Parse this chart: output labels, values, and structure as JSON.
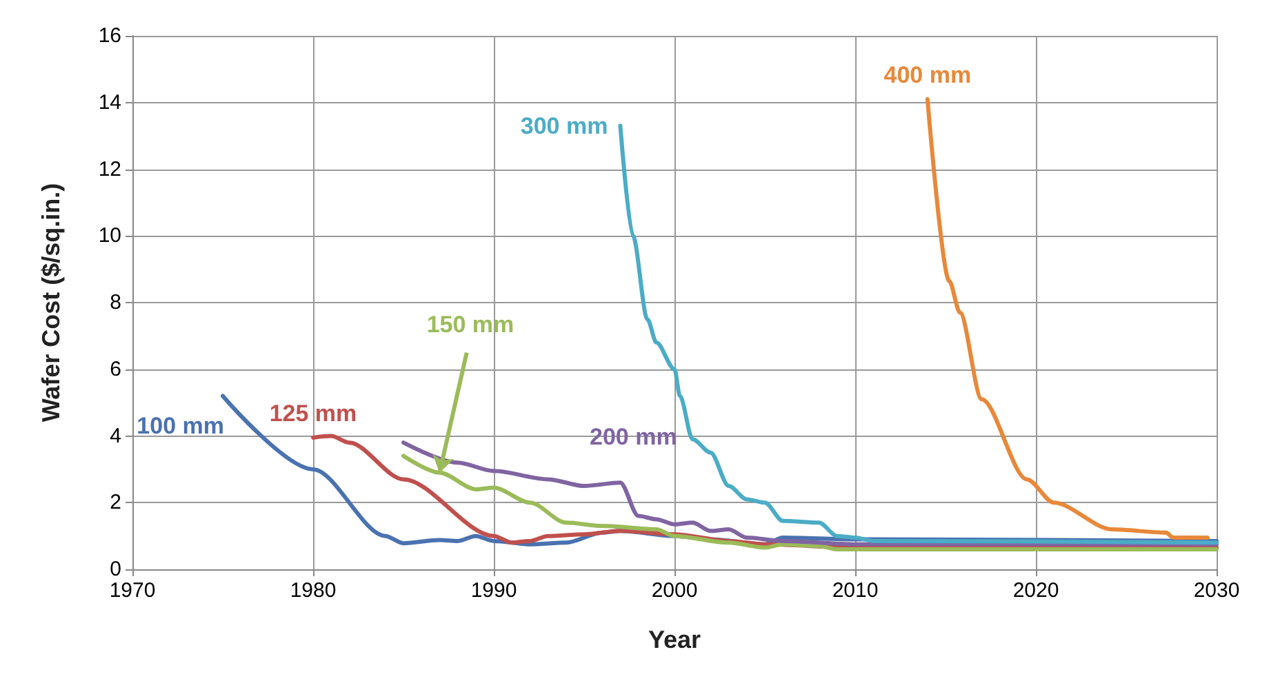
{
  "chart_data": {
    "type": "line",
    "xlabel": "Year",
    "ylabel": "Wafer Cost ($/sq.in.)",
    "xlim": [
      1970,
      2030
    ],
    "xticks": [
      1970,
      1980,
      1990,
      2000,
      2010,
      2020,
      2030
    ],
    "ylim": [
      0,
      16
    ],
    "yticks": [
      0,
      2,
      4,
      6,
      8,
      10,
      12,
      14,
      16
    ],
    "grid": true,
    "legend": false,
    "marker": "none",
    "line_style": "solid",
    "series": [
      {
        "name": "100 mm",
        "color": "#4a72b0",
        "x": [
          1975,
          1980,
          1984,
          1985,
          1987,
          1988,
          1989,
          1990,
          1992,
          1994,
          1996,
          1997,
          2000,
          2002,
          2005,
          2006,
          2010,
          2030
        ],
        "values": [
          5.2,
          3.0,
          1.0,
          0.78,
          0.88,
          0.85,
          1.0,
          0.85,
          0.75,
          0.8,
          1.1,
          1.15,
          1.0,
          0.9,
          0.75,
          0.95,
          0.9,
          0.85
        ]
      },
      {
        "name": "125 mm",
        "color": "#c0504d",
        "x": [
          1980,
          1981,
          1982,
          1985,
          1990,
          1991,
          1992,
          1993,
          1995,
          1997,
          2000,
          2003,
          2005,
          2010,
          2030
        ],
        "values": [
          3.95,
          4.0,
          3.8,
          2.7,
          1.0,
          0.8,
          0.85,
          1.0,
          1.05,
          1.15,
          1.05,
          0.85,
          0.75,
          0.65,
          0.65
        ]
      },
      {
        "name": "150 mm",
        "color": "#9bbb59",
        "x": [
          1985,
          1987,
          1989,
          1990,
          1992,
          1994,
          1996,
          1999,
          2000,
          2003,
          2005,
          2006,
          2008,
          2009,
          2030
        ],
        "values": [
          3.4,
          2.9,
          2.4,
          2.45,
          2.0,
          1.4,
          1.3,
          1.2,
          1.0,
          0.8,
          0.65,
          0.75,
          0.7,
          0.6,
          0.6
        ]
      },
      {
        "name": "200 mm",
        "color": "#8064a2",
        "x": [
          1985,
          1988,
          1990,
          1993,
          1995,
          1997,
          1998,
          1999,
          2000,
          2001,
          2002,
          2003,
          2004,
          2006,
          2010,
          2030
        ],
        "values": [
          3.8,
          3.2,
          2.95,
          2.7,
          2.5,
          2.6,
          1.6,
          1.5,
          1.35,
          1.4,
          1.15,
          1.2,
          0.95,
          0.85,
          0.75,
          0.75
        ]
      },
      {
        "name": "300 mm",
        "color": "#4bacc6",
        "x": [
          1997,
          1997.7,
          1998.5,
          1999,
          2000,
          2000.3,
          2001,
          2002,
          2003,
          2004,
          2005,
          2006,
          2008,
          2009,
          2010,
          2011,
          2030
        ],
        "values": [
          13.3,
          10,
          7.5,
          6.8,
          6.0,
          5.2,
          3.9,
          3.5,
          2.5,
          2.1,
          2.0,
          1.45,
          1.4,
          1.0,
          0.95,
          0.85,
          0.8
        ]
      },
      {
        "name": "400 mm",
        "color": "#e8883a",
        "x": [
          2014,
          2015.2,
          2015.8,
          2017,
          2019.5,
          2021,
          2024.2,
          2027.2,
          2027.6,
          2029.5
        ],
        "values": [
          14.1,
          8.65,
          7.7,
          5.1,
          2.7,
          2.0,
          1.2,
          1.1,
          0.95,
          0.95
        ]
      }
    ]
  }
}
